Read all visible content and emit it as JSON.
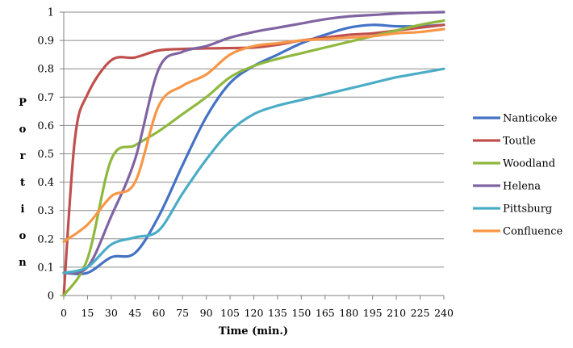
{
  "chart_data": {
    "type": "line",
    "title": "",
    "xlabel": "Time (min.)",
    "ylabel": "Portion",
    "xlim": [
      0,
      240
    ],
    "ylim": [
      0,
      1
    ],
    "xticks": [
      0,
      15,
      30,
      45,
      60,
      75,
      90,
      105,
      120,
      135,
      150,
      165,
      180,
      195,
      210,
      225,
      240
    ],
    "yticks": [
      0,
      0.1,
      0.2,
      0.3,
      0.4,
      0.5,
      0.6,
      0.7,
      0.8,
      0.9,
      1
    ],
    "grid": "horizontal",
    "legend": "right",
    "series": [
      {
        "name": "Nanticoke",
        "color": "#4472C4",
        "x": [
          0,
          15,
          30,
          45,
          60,
          75,
          90,
          105,
          120,
          135,
          150,
          165,
          180,
          195,
          210,
          225,
          240
        ],
        "y": [
          0.08,
          0.08,
          0.135,
          0.15,
          0.28,
          0.46,
          0.63,
          0.75,
          0.81,
          0.85,
          0.89,
          0.92,
          0.945,
          0.955,
          0.95,
          0.95,
          0.955
        ]
      },
      {
        "name": "Toutle",
        "color": "#C0504D",
        "x": [
          0,
          7,
          15,
          30,
          45,
          60,
          75,
          90,
          105,
          120,
          135,
          150,
          165,
          180,
          195,
          210,
          225,
          240
        ],
        "y": [
          0.0,
          0.55,
          0.71,
          0.83,
          0.84,
          0.865,
          0.87,
          0.872,
          0.873,
          0.875,
          0.885,
          0.9,
          0.91,
          0.92,
          0.925,
          0.935,
          0.945,
          0.955
        ]
      },
      {
        "name": "Woodland",
        "color": "#8FB83E",
        "x": [
          0,
          15,
          30,
          45,
          60,
          75,
          90,
          105,
          120,
          135,
          150,
          165,
          180,
          195,
          210,
          225,
          240
        ],
        "y": [
          0.0,
          0.13,
          0.48,
          0.53,
          0.58,
          0.64,
          0.7,
          0.77,
          0.81,
          0.835,
          0.855,
          0.875,
          0.895,
          0.915,
          0.935,
          0.955,
          0.97
        ]
      },
      {
        "name": "Helena",
        "color": "#8064A2",
        "x": [
          0,
          15,
          30,
          45,
          60,
          75,
          90,
          105,
          120,
          135,
          150,
          165,
          180,
          195,
          210,
          225,
          240
        ],
        "y": [
          0.08,
          0.1,
          0.28,
          0.48,
          0.8,
          0.86,
          0.88,
          0.91,
          0.93,
          0.945,
          0.96,
          0.975,
          0.985,
          0.99,
          0.995,
          0.998,
          1.0
        ]
      },
      {
        "name": "Pittsburg",
        "color": "#4BACC6",
        "x": [
          0,
          15,
          30,
          45,
          60,
          75,
          90,
          105,
          120,
          135,
          150,
          165,
          180,
          195,
          210,
          225,
          240
        ],
        "y": [
          0.08,
          0.1,
          0.18,
          0.205,
          0.23,
          0.36,
          0.48,
          0.58,
          0.64,
          0.67,
          0.69,
          0.71,
          0.73,
          0.75,
          0.77,
          0.785,
          0.8
        ]
      },
      {
        "name": "Confluence",
        "color": "#F79646",
        "x": [
          0,
          15,
          30,
          45,
          60,
          75,
          90,
          105,
          120,
          135,
          150,
          165,
          180,
          195,
          210,
          225,
          240
        ],
        "y": [
          0.19,
          0.25,
          0.35,
          0.4,
          0.67,
          0.74,
          0.78,
          0.85,
          0.88,
          0.89,
          0.9,
          0.905,
          0.91,
          0.915,
          0.925,
          0.93,
          0.94
        ]
      }
    ]
  }
}
